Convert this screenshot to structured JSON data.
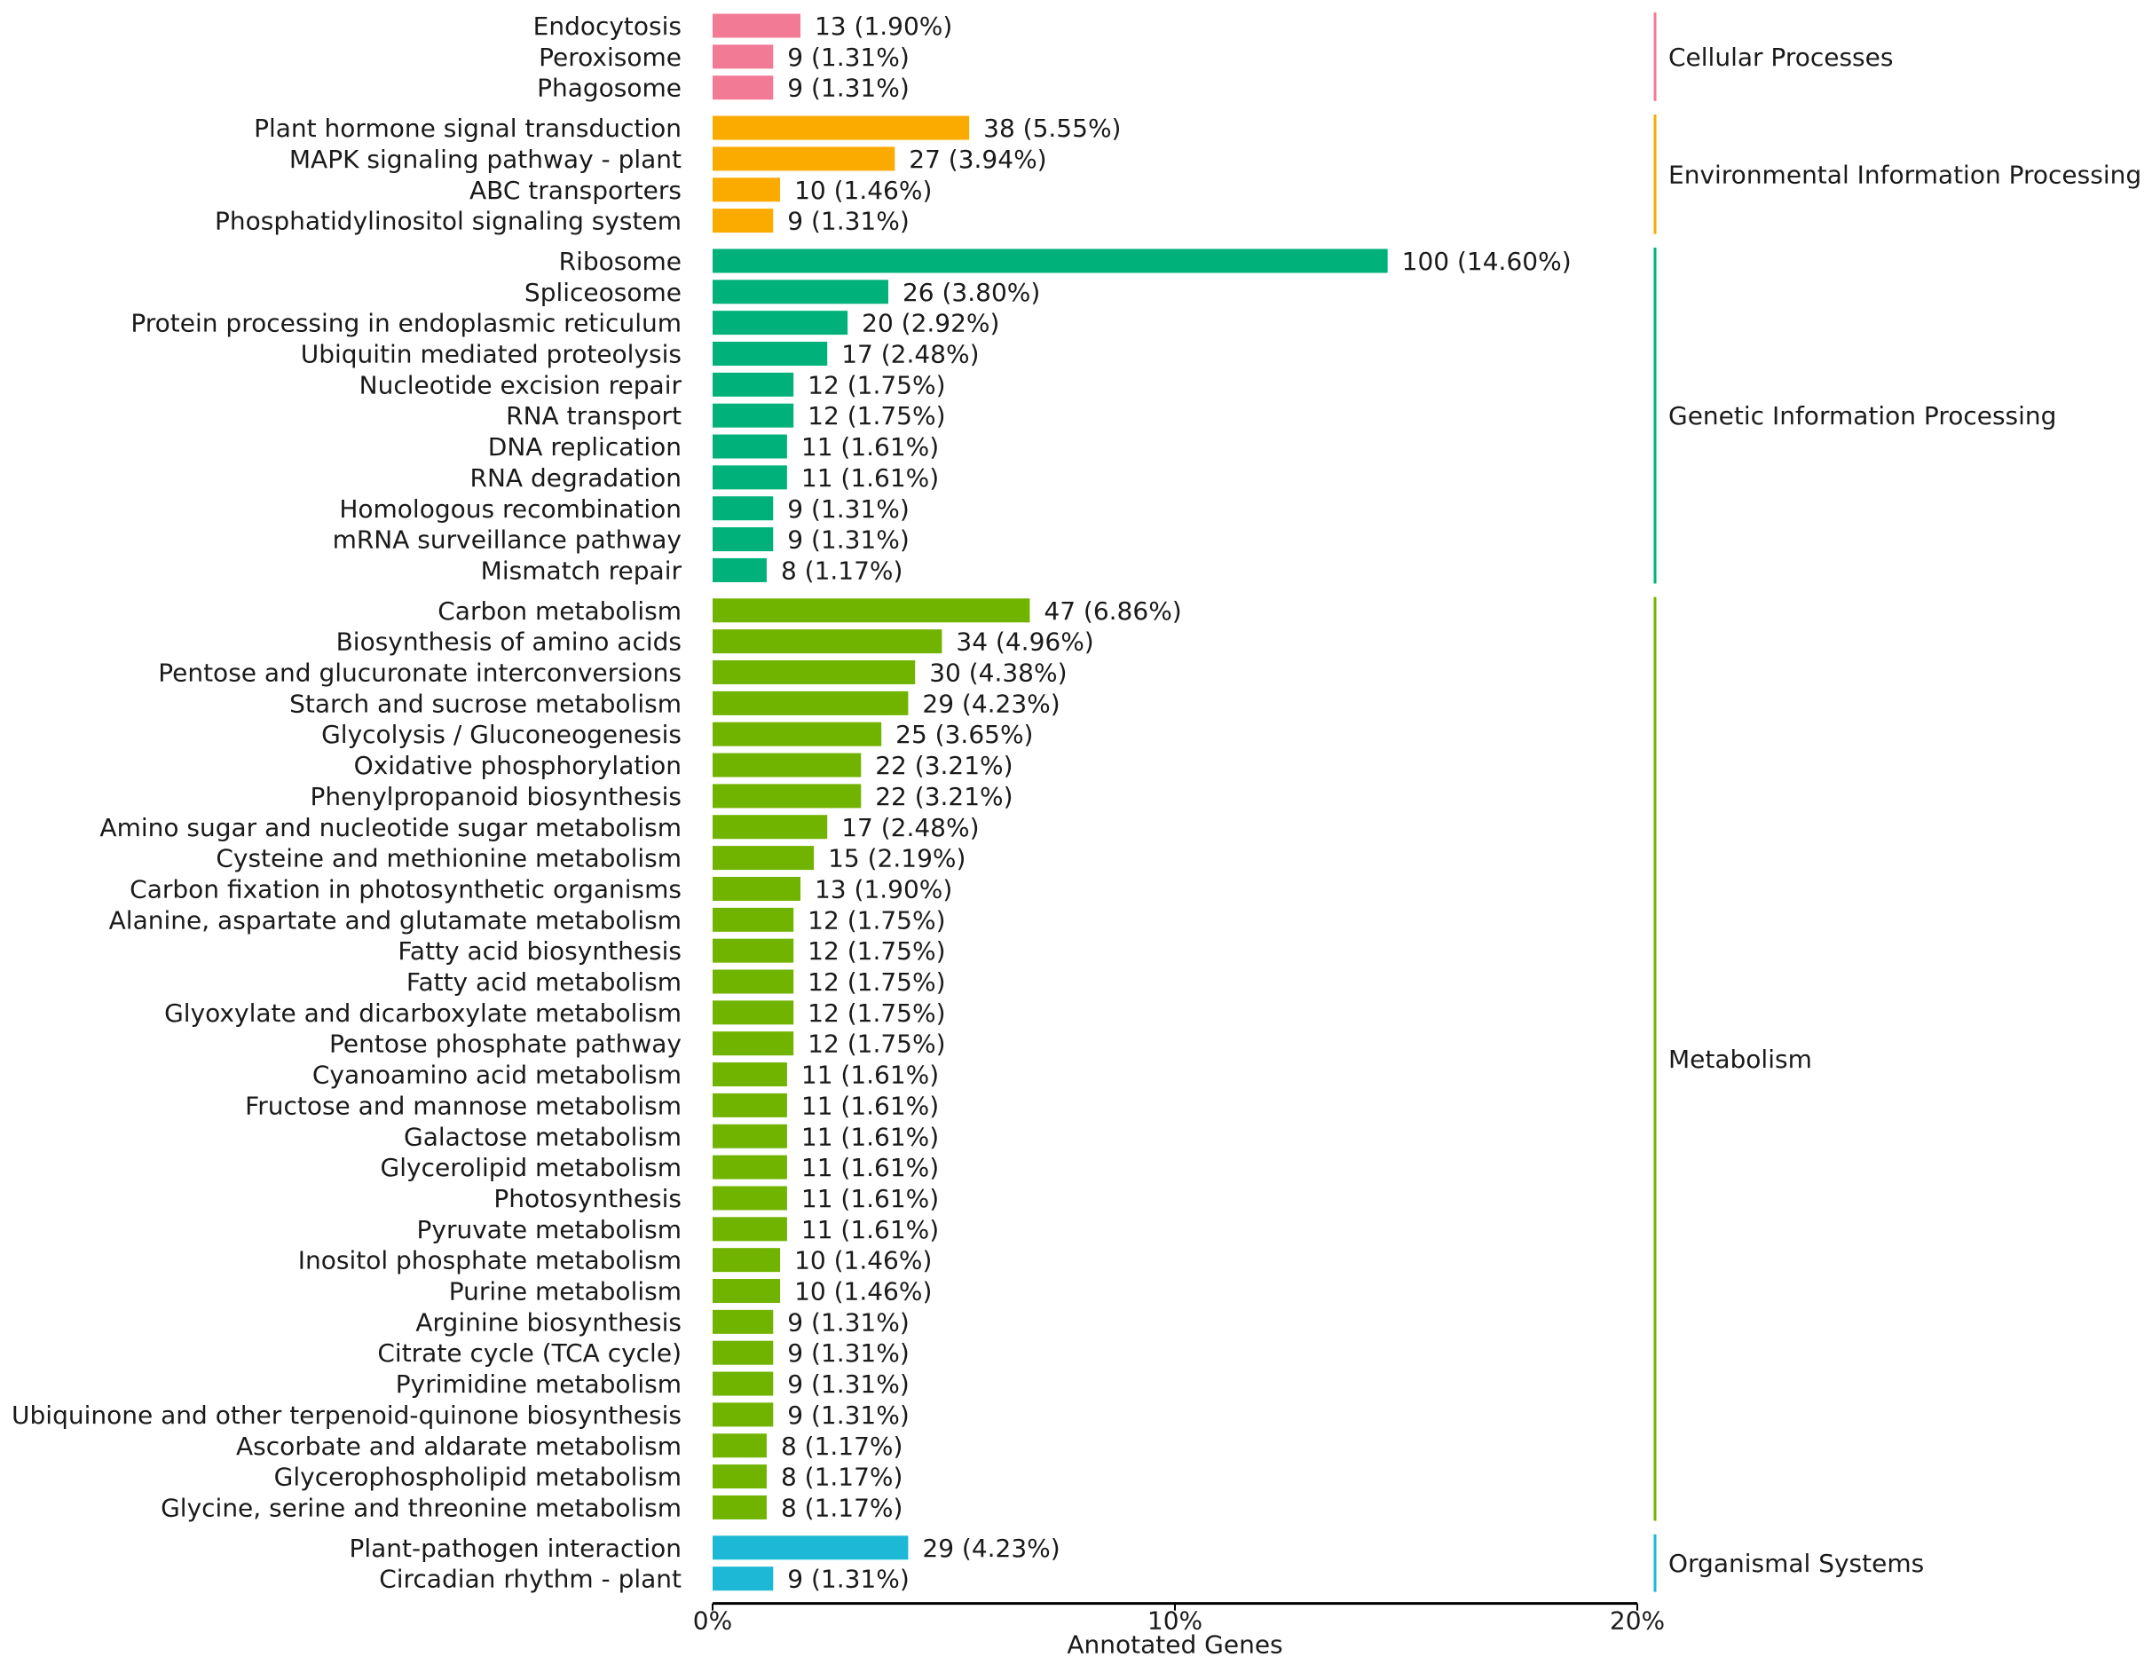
{
  "chart_data": {
    "type": "bar",
    "orientation": "horizontal",
    "xlabel": "Annotated Genes",
    "xlim": [
      0,
      20
    ],
    "x_ticks": [
      "0%",
      "10%",
      "20%"
    ],
    "grid": false,
    "groups": [
      {
        "name": "Cellular Processes",
        "color": "#F27A94",
        "items": [
          {
            "label": "Endocytosis",
            "count": 13,
            "percent": 1.9,
            "text": "13 (1.90%)"
          },
          {
            "label": "Peroxisome",
            "count": 9,
            "percent": 1.31,
            "text": "9 (1.31%)"
          },
          {
            "label": "Phagosome",
            "count": 9,
            "percent": 1.31,
            "text": "9 (1.31%)"
          }
        ]
      },
      {
        "name": "Environmental Information Processing",
        "color": "#FBAA00",
        "items": [
          {
            "label": "Plant hormone signal transduction",
            "count": 38,
            "percent": 5.55,
            "text": "38 (5.55%)"
          },
          {
            "label": "MAPK signaling pathway - plant",
            "count": 27,
            "percent": 3.94,
            "text": "27 (3.94%)"
          },
          {
            "label": "ABC transporters",
            "count": 10,
            "percent": 1.46,
            "text": "10 (1.46%)"
          },
          {
            "label": "Phosphatidylinositol signaling system",
            "count": 9,
            "percent": 1.31,
            "text": "9 (1.31%)"
          }
        ]
      },
      {
        "name": "Genetic Information Processing",
        "color": "#00B27A",
        "items": [
          {
            "label": "Ribosome",
            "count": 100,
            "percent": 14.6,
            "text": "100 (14.60%)"
          },
          {
            "label": "Spliceosome",
            "count": 26,
            "percent": 3.8,
            "text": "26 (3.80%)"
          },
          {
            "label": "Protein processing in endoplasmic reticulum",
            "count": 20,
            "percent": 2.92,
            "text": "20 (2.92%)"
          },
          {
            "label": "Ubiquitin mediated proteolysis",
            "count": 17,
            "percent": 2.48,
            "text": "17 (2.48%)"
          },
          {
            "label": "Nucleotide excision repair",
            "count": 12,
            "percent": 1.75,
            "text": "12 (1.75%)"
          },
          {
            "label": "RNA transport",
            "count": 12,
            "percent": 1.75,
            "text": "12 (1.75%)"
          },
          {
            "label": "DNA replication",
            "count": 11,
            "percent": 1.61,
            "text": "11 (1.61%)"
          },
          {
            "label": "RNA degradation",
            "count": 11,
            "percent": 1.61,
            "text": "11 (1.61%)"
          },
          {
            "label": "Homologous recombination",
            "count": 9,
            "percent": 1.31,
            "text": "9 (1.31%)"
          },
          {
            "label": "mRNA surveillance pathway",
            "count": 9,
            "percent": 1.31,
            "text": "9 (1.31%)"
          },
          {
            "label": "Mismatch repair",
            "count": 8,
            "percent": 1.17,
            "text": "8 (1.17%)"
          }
        ]
      },
      {
        "name": "Metabolism",
        "color": "#70B400",
        "items": [
          {
            "label": "Carbon metabolism",
            "count": 47,
            "percent": 6.86,
            "text": "47 (6.86%)"
          },
          {
            "label": "Biosynthesis of amino acids",
            "count": 34,
            "percent": 4.96,
            "text": "34 (4.96%)"
          },
          {
            "label": "Pentose and glucuronate interconversions",
            "count": 30,
            "percent": 4.38,
            "text": "30 (4.38%)"
          },
          {
            "label": "Starch and sucrose metabolism",
            "count": 29,
            "percent": 4.23,
            "text": "29 (4.23%)"
          },
          {
            "label": "Glycolysis / Gluconeogenesis",
            "count": 25,
            "percent": 3.65,
            "text": "25 (3.65%)"
          },
          {
            "label": "Oxidative phosphorylation",
            "count": 22,
            "percent": 3.21,
            "text": "22 (3.21%)"
          },
          {
            "label": "Phenylpropanoid biosynthesis",
            "count": 22,
            "percent": 3.21,
            "text": "22 (3.21%)"
          },
          {
            "label": "Amino sugar and nucleotide sugar metabolism",
            "count": 17,
            "percent": 2.48,
            "text": "17 (2.48%)"
          },
          {
            "label": "Cysteine and methionine metabolism",
            "count": 15,
            "percent": 2.19,
            "text": "15 (2.19%)"
          },
          {
            "label": "Carbon fixation in photosynthetic organisms",
            "count": 13,
            "percent": 1.9,
            "text": "13 (1.90%)"
          },
          {
            "label": "Alanine, aspartate and glutamate metabolism",
            "count": 12,
            "percent": 1.75,
            "text": "12 (1.75%)"
          },
          {
            "label": "Fatty acid biosynthesis",
            "count": 12,
            "percent": 1.75,
            "text": "12 (1.75%)"
          },
          {
            "label": "Fatty acid metabolism",
            "count": 12,
            "percent": 1.75,
            "text": "12 (1.75%)"
          },
          {
            "label": "Glyoxylate and dicarboxylate metabolism",
            "count": 12,
            "percent": 1.75,
            "text": "12 (1.75%)"
          },
          {
            "label": "Pentose phosphate pathway",
            "count": 12,
            "percent": 1.75,
            "text": "12 (1.75%)"
          },
          {
            "label": "Cyanoamino acid metabolism",
            "count": 11,
            "percent": 1.61,
            "text": "11 (1.61%)"
          },
          {
            "label": "Fructose and mannose metabolism",
            "count": 11,
            "percent": 1.61,
            "text": "11 (1.61%)"
          },
          {
            "label": "Galactose metabolism",
            "count": 11,
            "percent": 1.61,
            "text": "11 (1.61%)"
          },
          {
            "label": "Glycerolipid metabolism",
            "count": 11,
            "percent": 1.61,
            "text": "11 (1.61%)"
          },
          {
            "label": "Photosynthesis",
            "count": 11,
            "percent": 1.61,
            "text": "11 (1.61%)"
          },
          {
            "label": "Pyruvate metabolism",
            "count": 11,
            "percent": 1.61,
            "text": "11 (1.61%)"
          },
          {
            "label": "Inositol phosphate metabolism",
            "count": 10,
            "percent": 1.46,
            "text": "10 (1.46%)"
          },
          {
            "label": "Purine metabolism",
            "count": 10,
            "percent": 1.46,
            "text": "10 (1.46%)"
          },
          {
            "label": "Arginine biosynthesis",
            "count": 9,
            "percent": 1.31,
            "text": "9 (1.31%)"
          },
          {
            "label": "Citrate cycle (TCA cycle)",
            "count": 9,
            "percent": 1.31,
            "text": "9 (1.31%)"
          },
          {
            "label": "Pyrimidine metabolism",
            "count": 9,
            "percent": 1.31,
            "text": "9 (1.31%)"
          },
          {
            "label": "Ubiquinone and other terpenoid-quinone biosynthesis",
            "count": 9,
            "percent": 1.31,
            "text": "9 (1.31%)"
          },
          {
            "label": "Ascorbate and aldarate metabolism",
            "count": 8,
            "percent": 1.17,
            "text": "8 (1.17%)"
          },
          {
            "label": "Glycerophospholipid metabolism",
            "count": 8,
            "percent": 1.17,
            "text": "8 (1.17%)"
          },
          {
            "label": "Glycine, serine and threonine metabolism",
            "count": 8,
            "percent": 1.17,
            "text": "8 (1.17%)"
          }
        ]
      },
      {
        "name": "Organismal Systems",
        "color": "#1CB8D6",
        "items": [
          {
            "label": "Plant-pathogen interaction",
            "count": 29,
            "percent": 4.23,
            "text": "29 (4.23%)"
          },
          {
            "label": "Circadian rhythm - plant",
            "count": 9,
            "percent": 1.31,
            "text": "9 (1.31%)"
          }
        ]
      }
    ]
  }
}
